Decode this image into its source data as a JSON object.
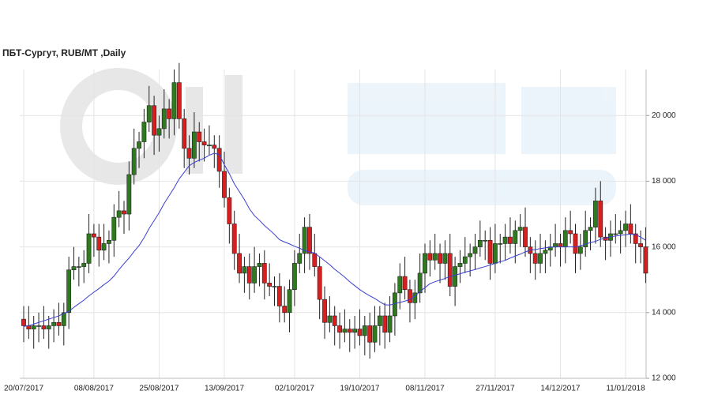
{
  "chart_data": {
    "type": "candlestick",
    "title": "ПБТ-Сургут,  RUB/MT ,Daily",
    "categories": [
      "20/07/2017",
      null,
      null,
      null,
      null,
      null,
      null,
      null,
      null,
      null,
      null,
      null,
      null,
      null,
      "08/08/2017",
      null,
      null,
      null,
      null,
      null,
      null,
      null,
      null,
      null,
      null,
      null,
      null,
      "25/08/2017",
      null,
      null,
      null,
      null,
      null,
      null,
      null,
      null,
      null,
      null,
      null,
      null,
      "13/09/2017",
      null,
      null,
      null,
      null,
      null,
      null,
      null,
      null,
      null,
      null,
      null,
      null,
      null,
      "02/10/2017",
      null,
      null,
      null,
      null,
      null,
      null,
      null,
      null,
      null,
      null,
      null,
      null,
      "19/10/2017",
      null,
      null,
      null,
      null,
      null,
      null,
      null,
      null,
      null,
      null,
      null,
      null,
      "08/11/2017",
      null,
      null,
      null,
      null,
      null,
      null,
      null,
      null,
      null,
      null,
      null,
      null,
      null,
      "27/11/2017",
      null,
      null,
      null,
      null,
      null,
      null,
      null,
      null,
      null,
      null,
      null,
      null,
      "14/12/2017",
      null,
      null,
      null,
      null,
      null,
      null,
      null,
      null,
      null,
      null,
      null,
      null,
      "11/01/2018",
      null,
      null,
      null,
      null
    ],
    "open": [
      13800,
      13600,
      13500,
      13600,
      13600,
      13500,
      13600,
      13700,
      13600,
      14000,
      15300,
      15400,
      15400,
      15500,
      16400,
      16300,
      15900,
      16100,
      16200,
      16900,
      17100,
      17000,
      18200,
      19000,
      19200,
      19800,
      20300,
      19400,
      19600,
      20200,
      19900,
      21000,
      19900,
      19000,
      18700,
      19500,
      19200,
      19100,
      19100,
      19000,
      18300,
      17500,
      16700,
      15800,
      15200,
      15400,
      14900,
      15400,
      15500,
      14900,
      14800,
      14800,
      14200,
      14000,
      14700,
      15500,
      15800,
      16600,
      15800,
      15400,
      14400,
      13700,
      13900,
      13600,
      13400,
      13500,
      13400,
      13500,
      13300,
      13600,
      13100,
      13600,
      13900,
      13400,
      13900,
      14600,
      15100,
      14700,
      14300,
      14600,
      15200,
      15800,
      15600,
      15800,
      15500,
      15800,
      14800,
      15400,
      15500,
      15700,
      15800,
      16000,
      16200,
      16200,
      15500,
      16100,
      16100,
      16300,
      16100,
      16500,
      16600,
      16000,
      15800,
      15500,
      15800,
      15900,
      16000,
      16100,
      16000,
      16500,
      16400,
      15800,
      16000,
      16500,
      16600,
      17400,
      16300,
      16200,
      16400,
      16400,
      16500,
      16700,
      16400,
      16100,
      16000
    ],
    "high": [
      14200,
      14200,
      13900,
      14000,
      14200,
      13900,
      14100,
      14300,
      14300,
      15700,
      16000,
      15700,
      15900,
      17000,
      16700,
      16700,
      16700,
      16500,
      17300,
      17700,
      17400,
      18600,
      19600,
      19500,
      20200,
      20900,
      20600,
      20000,
      20800,
      20500,
      21400,
      21600,
      20200,
      19400,
      20100,
      19800,
      19600,
      19700,
      19400,
      19400,
      18900,
      17800,
      17100,
      16400,
      15700,
      15800,
      16000,
      15800,
      15900,
      15500,
      15100,
      15200,
      14800,
      15000,
      15900,
      16400,
      16900,
      17000,
      16400,
      15700,
      14800,
      14500,
      14200,
      14000,
      14100,
      13800,
      13900,
      14100,
      13900,
      14000,
      14200,
      14200,
      14300,
      14500,
      14900,
      15500,
      15700,
      15000,
      15000,
      15800,
      16100,
      16200,
      16400,
      16100,
      16200,
      16400,
      15700,
      15900,
      16300,
      16100,
      16400,
      16800,
      16500,
      16600,
      16700,
      16400,
      16700,
      16900,
      16800,
      17000,
      17200,
      16300,
      16200,
      16400,
      16200,
      16400,
      16700,
      16400,
      16900,
      17100,
      16700,
      16400,
      17100,
      16900,
      17800,
      18000,
      16600,
      16800,
      17000,
      16800,
      17100,
      17300,
      16700,
      16500,
      16600
    ],
    "low": [
      13100,
      13200,
      12900,
      13100,
      13200,
      12900,
      13100,
      13300,
      13000,
      13500,
      15000,
      14800,
      14900,
      15200,
      15700,
      15400,
      15600,
      15500,
      15700,
      16600,
      16400,
      16500,
      17900,
      18400,
      18700,
      19500,
      18800,
      18900,
      19300,
      19300,
      19400,
      19600,
      18400,
      18200,
      18400,
      18600,
      18600,
      18800,
      18400,
      17800,
      17200,
      16100,
      15300,
      14900,
      14600,
      14400,
      14600,
      14800,
      14400,
      14500,
      14200,
      13700,
      13700,
      13400,
      14200,
      15200,
      15200,
      15300,
      15100,
      13800,
      13200,
      13400,
      13000,
      12900,
      13100,
      12800,
      12900,
      13000,
      12700,
      12600,
      12800,
      13000,
      12900,
      13100,
      13300,
      14100,
      14400,
      13700,
      13800,
      14300,
      14600,
      15100,
      15300,
      14900,
      15000,
      14500,
      14200,
      14900,
      15200,
      15100,
      15300,
      15700,
      15600,
      15000,
      15200,
      15500,
      15600,
      15800,
      15500,
      16000,
      15700,
      15200,
      15000,
      15200,
      15200,
      15400,
      15700,
      15400,
      15500,
      16100,
      15200,
      15300,
      15700,
      15900,
      16100,
      16000,
      15600,
      15700,
      16100,
      15800,
      16000,
      16100,
      15500,
      15500,
      14900
    ],
    "close": [
      13600,
      13500,
      13600,
      13600,
      13500,
      13600,
      13700,
      13600,
      14000,
      15300,
      15400,
      15400,
      15500,
      16400,
      16300,
      15900,
      16100,
      16200,
      16900,
      17100,
      17000,
      18200,
      19000,
      19200,
      19800,
      20300,
      19400,
      19600,
      20200,
      19900,
      21000,
      19900,
      19000,
      18700,
      19500,
      19200,
      19100,
      19100,
      19000,
      18300,
      17500,
      16700,
      15800,
      15200,
      15400,
      14900,
      15400,
      15500,
      14900,
      14800,
      14800,
      14200,
      14000,
      14700,
      15500,
      15800,
      16600,
      15800,
      15400,
      14400,
      13700,
      13900,
      13600,
      13400,
      13500,
      13400,
      13500,
      13300,
      13600,
      13100,
      13600,
      13900,
      13400,
      13900,
      14600,
      15100,
      14700,
      14300,
      14600,
      15200,
      15800,
      15600,
      15800,
      15500,
      15800,
      14800,
      15400,
      15500,
      15700,
      15800,
      16000,
      16200,
      16200,
      15500,
      16100,
      16100,
      16300,
      16100,
      16500,
      16600,
      16000,
      15800,
      15500,
      15800,
      15900,
      16000,
      16100,
      16000,
      16500,
      16400,
      15800,
      16000,
      16500,
      16600,
      17400,
      16300,
      16200,
      16400,
      16400,
      16500,
      16700,
      16400,
      16100,
      16000,
      15200
    ],
    "up_color": "#2f7a1f",
    "down_color": "#d71f1f",
    "overlay": {
      "type": "line",
      "color": "#3a3fd0",
      "values": [
        13580,
        13600,
        13650,
        13700,
        13750,
        13800,
        13850,
        13900,
        13970,
        14040,
        14160,
        14270,
        14380,
        14510,
        14620,
        14730,
        14850,
        14960,
        15110,
        15310,
        15490,
        15660,
        15860,
        16040,
        16280,
        16560,
        16800,
        17040,
        17320,
        17560,
        17800,
        18070,
        18270,
        18470,
        18570,
        18640,
        18700,
        18790,
        18850,
        18810,
        18500,
        18230,
        17920,
        17680,
        17440,
        17160,
        16950,
        16810,
        16650,
        16520,
        16380,
        16220,
        16150,
        16090,
        16020,
        15960,
        15890,
        15850,
        15810,
        15700,
        15580,
        15460,
        15320,
        15200,
        15080,
        14940,
        14820,
        14700,
        14600,
        14510,
        14430,
        14330,
        14240,
        14230,
        14270,
        14310,
        14350,
        14400,
        14500,
        14640,
        14760,
        14880,
        14940,
        14990,
        15040,
        15100,
        15140,
        15180,
        15230,
        15270,
        15310,
        15360,
        15400,
        15450,
        15500,
        15550,
        15590,
        15660,
        15720,
        15780,
        15850,
        15900,
        15920,
        15950,
        15970,
        15990,
        16000,
        16000,
        16000,
        16000,
        16000,
        16030,
        16090,
        16130,
        16170,
        16230,
        16270,
        16310,
        16330,
        16350,
        16370,
        16390,
        16370,
        16300,
        16200
      ]
    },
    "ylim": [
      12000,
      21400
    ],
    "yticks": [
      {
        "value": 12000,
        "label": "12 000"
      },
      {
        "value": 14000,
        "label": "14 000"
      },
      {
        "value": 16000,
        "label": "16 000"
      },
      {
        "value": 18000,
        "label": "18 000"
      },
      {
        "value": 20000,
        "label": "20 000"
      }
    ],
    "grid": true
  }
}
